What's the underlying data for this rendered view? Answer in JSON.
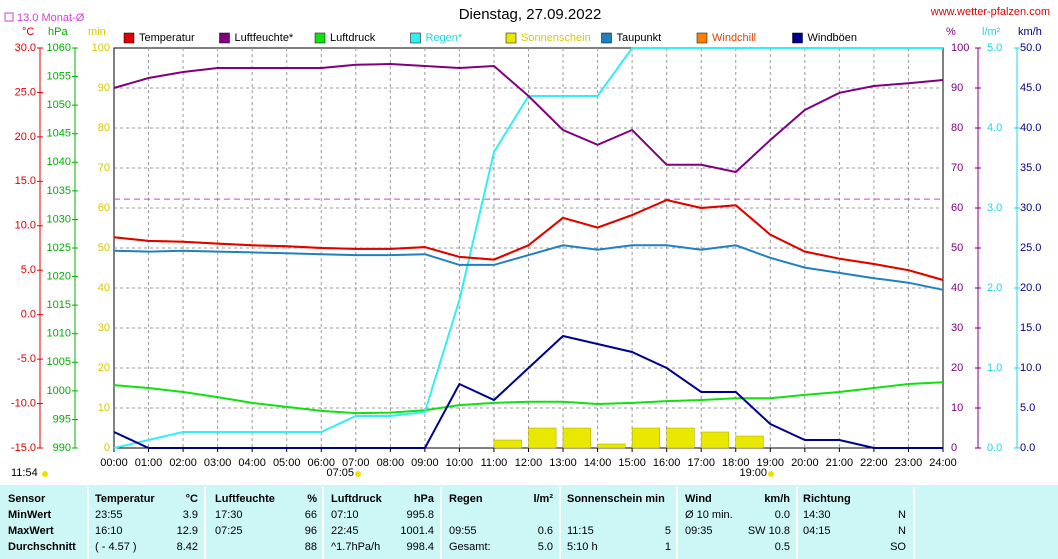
{
  "chart_data": {
    "type": "line",
    "title": "Dienstag, 27.09.2022",
    "source": "www.wetter-pfalzen.com",
    "reference": {
      "value": 13,
      "label": "13.0 Monat-Ø",
      "axis": "temp",
      "color": "#d040d0"
    },
    "grid": true,
    "x": [
      0,
      1,
      2,
      3,
      4,
      5,
      6,
      7,
      8,
      9,
      10,
      11,
      12,
      13,
      14,
      15,
      16,
      17,
      18,
      19,
      20,
      21,
      22,
      23,
      24
    ],
    "xlim": [
      0,
      24
    ],
    "xticks": [
      {
        "value": 0,
        "label": "00:00"
      },
      {
        "value": 1,
        "label": "01:00"
      },
      {
        "value": 2,
        "label": "02:00"
      },
      {
        "value": 3,
        "label": "03:00"
      },
      {
        "value": 4,
        "label": "04:00"
      },
      {
        "value": 5,
        "label": "05:00"
      },
      {
        "value": 6,
        "label": "06:00"
      },
      {
        "value": 7,
        "label": "07:00"
      },
      {
        "value": 8,
        "label": "08:00"
      },
      {
        "value": 9,
        "label": "09:00"
      },
      {
        "value": 10,
        "label": "10:00"
      },
      {
        "value": 11,
        "label": "11:00"
      },
      {
        "value": 12,
        "label": "12:00"
      },
      {
        "value": 13,
        "label": "13:00"
      },
      {
        "value": 14,
        "label": "14:00"
      },
      {
        "value": 15,
        "label": "15:00"
      },
      {
        "value": 16,
        "label": "16:00"
      },
      {
        "value": 17,
        "label": "17:00"
      },
      {
        "value": 18,
        "label": "18:00"
      },
      {
        "value": 19,
        "label": "19:00"
      },
      {
        "value": 20,
        "label": "20:00"
      },
      {
        "value": 21,
        "label": "21:00"
      },
      {
        "value": 22,
        "label": "22:00"
      },
      {
        "value": 23,
        "label": "23:00"
      },
      {
        "value": 24,
        "label": "24:00"
      }
    ],
    "axes": [
      {
        "id": "temp",
        "unit": "°C",
        "color": "#e00000",
        "lim": [
          -15,
          30
        ],
        "ticks": [
          {
            "value": 30,
            "label": "30.0"
          },
          {
            "value": 25,
            "label": "25.0"
          },
          {
            "value": 20,
            "label": "20.0"
          },
          {
            "value": 15,
            "label": "15.0"
          },
          {
            "value": 10,
            "label": "10.0"
          },
          {
            "value": 5,
            "label": "5.0"
          },
          {
            "value": 0,
            "label": "0.0"
          },
          {
            "value": -5,
            "label": "-5.0"
          },
          {
            "value": -10,
            "label": "-10.0"
          },
          {
            "value": -15,
            "label": "-15.0"
          }
        ]
      },
      {
        "id": "hpa",
        "unit": "hPa",
        "color": "#00b000",
        "lim": [
          990,
          1060
        ],
        "ticks": [
          1060,
          1055,
          1050,
          1045,
          1040,
          1035,
          1030,
          1025,
          1020,
          1015,
          1010,
          1005,
          1000,
          995,
          990
        ]
      },
      {
        "id": "min",
        "unit": "min",
        "color": "#d8c800",
        "lim": [
          0,
          100
        ],
        "ticks": [
          100,
          90,
          80,
          70,
          60,
          50,
          40,
          30,
          20,
          10,
          0
        ]
      },
      {
        "id": "pct",
        "unit": "%",
        "color": "#800080",
        "lim": [
          0,
          100
        ],
        "ticks": [
          100,
          90,
          80,
          70,
          60,
          50,
          40,
          30,
          20,
          10,
          0
        ]
      },
      {
        "id": "rain",
        "unit": "l/m²",
        "color": "#20d8e0",
        "lim": [
          0,
          5
        ],
        "ticks": [
          {
            "value": 5,
            "label": "5.0"
          },
          {
            "value": 4,
            "label": "4.0"
          },
          {
            "value": 3,
            "label": "3.0"
          },
          {
            "value": 2,
            "label": "2.0"
          },
          {
            "value": 1,
            "label": "1.0"
          },
          {
            "value": 0,
            "label": "0.0"
          }
        ]
      },
      {
        "id": "wind",
        "unit": "km/h",
        "color": "#000080",
        "lim": [
          0,
          50
        ],
        "ticks": [
          {
            "value": 50,
            "label": "50.0"
          },
          {
            "value": 45,
            "label": "45.0"
          },
          {
            "value": 40,
            "label": "40.0"
          },
          {
            "value": 35,
            "label": "35.0"
          },
          {
            "value": 30,
            "label": "30.0"
          },
          {
            "value": 25,
            "label": "25.0"
          },
          {
            "value": 20,
            "label": "20.0"
          },
          {
            "value": 15,
            "label": "15.0"
          },
          {
            "value": 10,
            "label": "10.0"
          },
          {
            "value": 5,
            "label": "5.0"
          },
          {
            "value": 0,
            "label": "0.0"
          }
        ]
      }
    ],
    "series": [
      {
        "name": "Temperatur",
        "color": "#e00000",
        "axis": "temp",
        "values": [
          8.7,
          8.3,
          8.2,
          8.0,
          7.8,
          7.7,
          7.5,
          7.4,
          7.4,
          7.6,
          6.5,
          6.2,
          7.8,
          10.9,
          9.8,
          11.2,
          12.9,
          12.0,
          12.3,
          9.0,
          7.1,
          6.3,
          5.7,
          5.0,
          3.9
        ]
      },
      {
        "name": "Luftfeuchte*",
        "color": "#800080",
        "axis": "pct",
        "values": [
          90,
          92.5,
          94,
          95,
          95,
          95,
          95,
          95.8,
          96,
          95.5,
          95,
          95.5,
          88,
          79.5,
          75.8,
          79.5,
          70.8,
          70.8,
          69,
          77,
          84.5,
          88.8,
          90.5,
          91.2,
          92
        ]
      },
      {
        "name": "Luftdruck",
        "color": "#10e010",
        "axis": "hpa",
        "values": [
          1001.0,
          1000.5,
          999.8,
          998.9,
          997.9,
          997.2,
          996.5,
          996.1,
          996.2,
          996.6,
          997.5,
          997.9,
          998.1,
          998.1,
          997.7,
          997.9,
          998.2,
          998.4,
          998.7,
          998.7,
          999.3,
          999.8,
          1000.5,
          1001.2,
          1001.5
        ]
      },
      {
        "name": "Regen*",
        "color": "#30f0f0",
        "legend_text_color": "#20d8e0",
        "axis": "rain",
        "values": [
          0,
          0.1,
          0.2,
          0.2,
          0.2,
          0.2,
          0.2,
          0.4,
          0.4,
          0.45,
          1.85,
          3.7,
          4.4,
          4.4,
          4.4,
          5.0,
          5.0,
          5.0,
          5.0,
          5.0,
          5.0,
          5.0,
          5.0,
          5.0,
          5.0
        ]
      },
      {
        "name": "Sonnenschein",
        "color": "#e8e800",
        "legend_text_color": "#d8c800",
        "axis": "min",
        "style": "bar",
        "values": [
          0,
          0,
          0,
          0,
          0,
          0,
          0,
          0,
          0,
          0,
          0,
          2,
          5,
          5,
          1,
          5,
          5,
          4,
          3,
          0,
          0,
          0,
          0,
          0,
          0
        ]
      },
      {
        "name": "Taupunkt",
        "color": "#2080c0",
        "axis": "temp",
        "values": [
          7.2,
          7.1,
          7.2,
          7.1,
          7.0,
          6.9,
          6.8,
          6.7,
          6.7,
          6.8,
          5.6,
          5.6,
          6.7,
          7.8,
          7.3,
          7.8,
          7.8,
          7.3,
          7.8,
          6.4,
          5.3,
          4.7,
          4.1,
          3.6,
          2.8
        ]
      },
      {
        "name": "Windchill",
        "color": "#ff8000",
        "legend_text_color": "#e04000",
        "axis": "temp",
        "values": [
          8.7,
          8.3,
          8.2,
          8.0,
          7.8,
          7.7,
          7.5,
          7.4,
          7.4,
          7.6,
          6.5,
          6.2,
          7.8,
          10.9,
          9.8,
          11.2,
          12.9,
          12.0,
          12.3,
          9.0,
          7.1,
          6.3,
          5.7,
          5.0,
          3.9
        ]
      },
      {
        "name": "Windböen",
        "color": "#000090",
        "axis": "wind",
        "values": [
          2,
          0,
          0,
          0,
          0,
          0,
          0,
          0,
          0,
          0,
          8,
          6,
          10,
          14,
          13,
          12,
          10,
          7,
          7,
          3,
          1,
          1,
          0,
          0,
          0
        ]
      }
    ],
    "annotations": [
      "11:54",
      "07:05",
      "19:00"
    ]
  },
  "table": {
    "header": [
      [
        "Sensor"
      ],
      [
        "Temperatur",
        "°C"
      ],
      [
        "Luftfeuchte",
        "%"
      ],
      [
        "Luftdruck",
        "hPa"
      ],
      [
        "Regen",
        "l/m²"
      ],
      [
        "Sonnenschein min"
      ],
      [
        "Wind",
        "km/h"
      ],
      [
        "Richtung"
      ]
    ],
    "rows": [
      {
        "label": "MinWert",
        "cells": [
          {
            "left": "23:55",
            "right": "3.9"
          },
          {
            "left": "17:30",
            "right": "66"
          },
          {
            "left": "07:10",
            "right": "995.8"
          },
          {},
          {},
          {
            "left": "Ø 10 min.",
            "right": "0.0"
          },
          {
            "left": "14:30",
            "right": "N"
          }
        ]
      },
      {
        "label": "MaxWert",
        "cells": [
          {
            "left": "16:10",
            "right": "12.9"
          },
          {
            "left": "07:25",
            "right": "96"
          },
          {
            "left": "22:45",
            "right": "1001.4"
          },
          {
            "left": "09:55",
            "right": "0.6"
          },
          {
            "left": "11:15",
            "right": "5"
          },
          {
            "left": "09:35",
            "right": "SW 10.8"
          },
          {
            "left": "04:15",
            "right": "N"
          }
        ]
      },
      {
        "label": "Durchschnitt",
        "cells": [
          {
            "left": "( - 4.57 )",
            "right": "8.42"
          },
          {
            "right": "88"
          },
          {
            "left": "^1.7hPa/h",
            "right": "998.4"
          },
          {
            "left": "Gesamt:",
            "right": "5.0"
          },
          {
            "left": "5:10 h",
            "right": "1"
          },
          {
            "right": "0.5"
          },
          {
            "right": "SO"
          }
        ]
      }
    ]
  }
}
